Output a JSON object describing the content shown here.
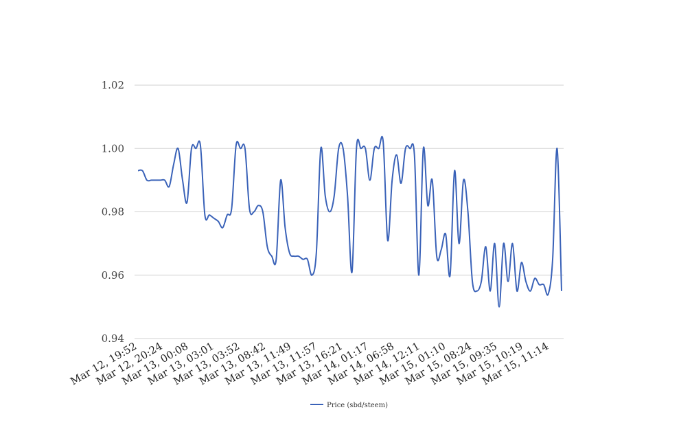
{
  "chart_data": {
    "type": "line",
    "title": "",
    "xlabel": "",
    "ylabel": "",
    "ylim": [
      0.94,
      1.02
    ],
    "yticks": [
      "0.94",
      "0.96",
      "0.98",
      "1.00",
      "1.02"
    ],
    "grid": true,
    "legend_position": "bottom-center",
    "x_tick_labels": [
      "Mar 12, 19:52",
      "Mar 12, 20:24",
      "Mar 13, 00:08",
      "Mar 13, 03:01",
      "Mar 13, 03:52",
      "Mar 13, 08:42",
      "Mar 13, 11:49",
      "Mar 13, 11:57",
      "Mar 13, 16:21",
      "Mar 14, 01:17",
      "Mar 14, 06:58",
      "Mar 14, 12:11",
      "Mar 15, 01:10",
      "Mar 15, 08:24",
      "Mar 15, 09:35",
      "Mar 15, 10:19",
      "Mar 15, 11:14"
    ],
    "series": [
      {
        "name": "Price (sbd/steem)",
        "color": "#3a62b8",
        "values": [
          0.993,
          0.993,
          0.99,
          0.99,
          0.99,
          0.99,
          0.99,
          0.988,
          0.995,
          1.0,
          0.99,
          0.983,
          1.0,
          1.0,
          1.001,
          0.979,
          0.979,
          0.978,
          0.977,
          0.975,
          0.979,
          0.981,
          1.001,
          1.0,
          1.0,
          0.981,
          0.98,
          0.982,
          0.98,
          0.969,
          0.966,
          0.965,
          0.99,
          0.975,
          0.967,
          0.966,
          0.966,
          0.965,
          0.965,
          0.96,
          0.967,
          1.0,
          0.985,
          0.98,
          0.985,
          1.0,
          1.0,
          0.985,
          0.961,
          1.0,
          1.0,
          1.0,
          0.99,
          1.0,
          1.0,
          1.002,
          0.971,
          0.99,
          0.998,
          0.989,
          1.0,
          1.0,
          0.998,
          0.96,
          1.0,
          0.982,
          0.99,
          0.966,
          0.968,
          0.973,
          0.96,
          0.993,
          0.97,
          0.99,
          0.98,
          0.958,
          0.955,
          0.958,
          0.969,
          0.955,
          0.97,
          0.95,
          0.97,
          0.958,
          0.97,
          0.955,
          0.964,
          0.958,
          0.955,
          0.959,
          0.957,
          0.957,
          0.954,
          0.965,
          1.0,
          0.955
        ]
      }
    ]
  }
}
